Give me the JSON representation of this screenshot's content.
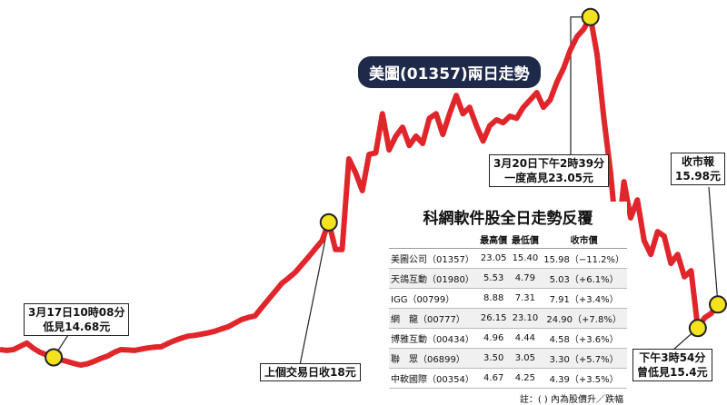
{
  "chart_data": {
    "type": "line",
    "title": "美圖(01357)兩日走勢",
    "color": "#e0262b",
    "values": [
      14.87,
      14.85,
      14.87,
      14.95,
      15.03,
      14.9,
      14.8,
      14.74,
      14.68,
      14.62,
      14.58,
      14.53,
      14.49,
      14.52,
      14.58,
      14.65,
      14.71,
      14.8,
      14.87,
      14.86,
      14.85,
      14.88,
      14.91,
      14.93,
      14.94,
      15.02,
      15.09,
      15.15,
      15.2,
      15.22,
      15.25,
      15.28,
      15.32,
      15.38,
      15.43,
      15.52,
      15.61,
      15.66,
      15.7,
      15.9,
      16.1,
      16.3,
      16.5,
      16.63,
      16.77,
      16.96,
      17.15,
      17.35,
      17.55,
      18,
      17.33,
      17.33,
      19.56,
      19.22,
      18.78,
      19.67,
      19.71,
      20.67,
      19.78,
      20.12,
      20.34,
      19.89,
      20.12,
      19.94,
      20.56,
      20.67,
      20.16,
      20.67,
      21.12,
      20.67,
      20.83,
      20.38,
      20.0,
      20.38,
      20.52,
      20.45,
      20.61,
      20.56,
      20.83,
      21.01,
      21.19,
      20.83,
      21.01,
      21.45,
      21.79,
      22.24,
      22.57,
      22.75,
      23.05,
      22.12,
      20.56,
      19.22,
      17.44,
      19.0,
      18.11,
      18.55,
      17.55,
      17.21,
      17.77,
      17.66,
      16.99,
      17.21,
      16.66,
      16.81,
      15.4,
      15.65,
      15.76,
      15.98
    ],
    "ylim": [
      14.2,
      23.2
    ],
    "annotations": [
      {
        "value": 14.68,
        "lines": [
          "3月17日10時08分",
          "低見14.68元"
        ]
      },
      {
        "value": 18,
        "lines": [
          "上個交易日收18元"
        ]
      },
      {
        "value": 23.05,
        "lines": [
          "3月20日下午2時39分",
          "一度高見23.05元"
        ]
      },
      {
        "value": 15.4,
        "lines": [
          "下午3時54分",
          "曾低見15.4元"
        ]
      },
      {
        "value": 15.98,
        "lines": [
          "收市報",
          "15.98元"
        ]
      }
    ]
  },
  "table": {
    "title": "科網軟件股全日走勢反覆",
    "header": [
      "最高價",
      "最低價",
      "收市價"
    ],
    "rows": [
      [
        "美圖公司（01357）",
        "23.05",
        "15.40",
        "15.98（−11.2%）"
      ],
      [
        "天鴿互動（01980）",
        "5.53",
        "4.79",
        "5.03（+6.1%）"
      ],
      [
        "IGG（00799）",
        "8.88",
        "7.31",
        "7.91（+3.4%）"
      ],
      [
        "網　龍（00777）",
        "26.15",
        "23.10",
        "24.90（+7.8%）"
      ],
      [
        "博雅互動（00434）",
        "4.96",
        "4.44",
        "4.58（+3.6%）"
      ],
      [
        "聯　眾（06899）",
        "3.50",
        "3.05",
        "3.30（+5.7%）"
      ],
      [
        "中軟國際（00354）",
        "4.67",
        "4.25",
        "4.39（+3.5%）"
      ]
    ],
    "note": "註：( ) 內為股價升／跌幅"
  }
}
